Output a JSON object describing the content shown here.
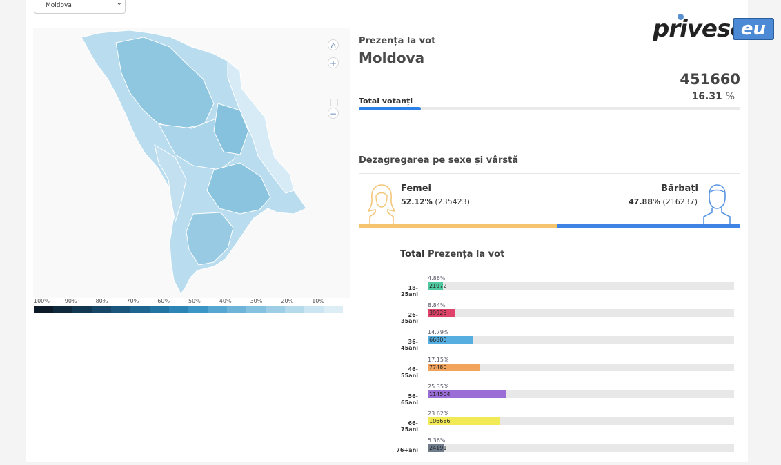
{
  "region_select": {
    "value": "Moldova"
  },
  "map": {
    "controls": {
      "home": "home-icon",
      "zoom_in": "+",
      "zoom_out": "−"
    },
    "scale_labels": [
      "100%",
      "90%",
      "80%",
      "70%",
      "60%",
      "50%",
      "40%",
      "30%",
      "20%",
      "10%"
    ],
    "scale_colors": [
      "#0b1a26",
      "#0f2a3d",
      "#123851",
      "#164766",
      "#1a567b",
      "#1e6690",
      "#2275a2",
      "#2c85b5",
      "#3b95c5",
      "#55a6d0",
      "#6db4d8",
      "#85c2df",
      "#9dcee6",
      "#b5daec",
      "#cbe5f2",
      "#dcedf6"
    ]
  },
  "turnout": {
    "heading": "Prezența la vot",
    "region": "Moldova",
    "total_voters": "451660",
    "percent": "16.31",
    "percent_unit": "%",
    "total_label": "Total votanți",
    "progress": 0.1631
  },
  "gender": {
    "heading": "Dezagregarea pe sexe și vârstă",
    "female": {
      "label": "Femei",
      "percent": "52.12%",
      "count": "(235423)",
      "share": 0.5212,
      "color": "#f4c56e"
    },
    "male": {
      "label": "Bărbați",
      "percent": "47.88%",
      "count": "(216237)",
      "share": 0.4788,
      "color": "#3f83e4"
    }
  },
  "ages": {
    "header_total": "Total",
    "header_turnout": "Prezența la vot",
    "rows": [
      {
        "label": "18-25ani",
        "percent": "4.86%",
        "count": "21972",
        "share": 0.0486,
        "color": "#4fc9a0"
      },
      {
        "label": "26-35ani",
        "percent": "8.84%",
        "count": "39928",
        "share": 0.0884,
        "color": "#e0436a"
      },
      {
        "label": "36-45ani",
        "percent": "14.79%",
        "count": "66800",
        "share": 0.1479,
        "color": "#55ade0"
      },
      {
        "label": "46-55ani",
        "percent": "17.15%",
        "count": "77480",
        "share": 0.1715,
        "color": "#f3a45c"
      },
      {
        "label": "56-65ani",
        "percent": "25.35%",
        "count": "114504",
        "share": 0.2535,
        "color": "#9b6dd6"
      },
      {
        "label": "66-75ani",
        "percent": "23.62%",
        "count": "106686",
        "share": 0.2362,
        "color": "#f2ea55"
      },
      {
        "label": "76+ani",
        "percent": "5.36%",
        "count": "24191",
        "share": 0.0536,
        "color": "#6e7b8a"
      }
    ]
  },
  "logo": {
    "main": "privesc",
    "suffix": "eu"
  }
}
